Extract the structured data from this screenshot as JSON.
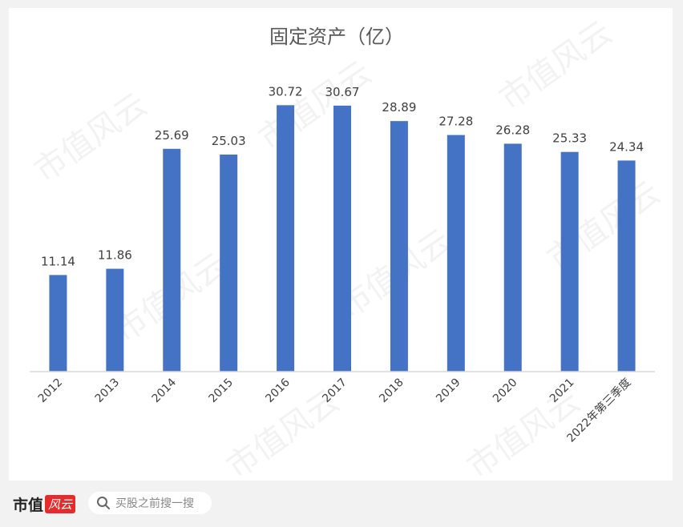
{
  "chart_data": {
    "type": "bar",
    "title": "固定资产（亿）",
    "categories": [
      "2012",
      "2013",
      "2014",
      "2015",
      "2016",
      "2017",
      "2018",
      "2019",
      "2020",
      "2021",
      "2022年第三季度"
    ],
    "values": [
      11.14,
      11.86,
      25.69,
      25.03,
      30.72,
      30.67,
      28.89,
      27.28,
      26.28,
      25.33,
      24.34
    ],
    "value_labels": [
      "11.14",
      "11.86",
      "25.69",
      "25.03",
      "30.72",
      "30.67",
      "28.89",
      "27.28",
      "26.28",
      "25.33",
      "24.34"
    ],
    "ylim": [
      0,
      35
    ],
    "bar_color": "#4472c4",
    "label_color": "#404040",
    "grid": false,
    "legend": "none"
  },
  "watermark": {
    "text": "市值风云"
  },
  "footer": {
    "brand": "市值",
    "brand_mark": "风云",
    "search_icon": "search-icon",
    "search_text": "买股之前搜一搜"
  }
}
